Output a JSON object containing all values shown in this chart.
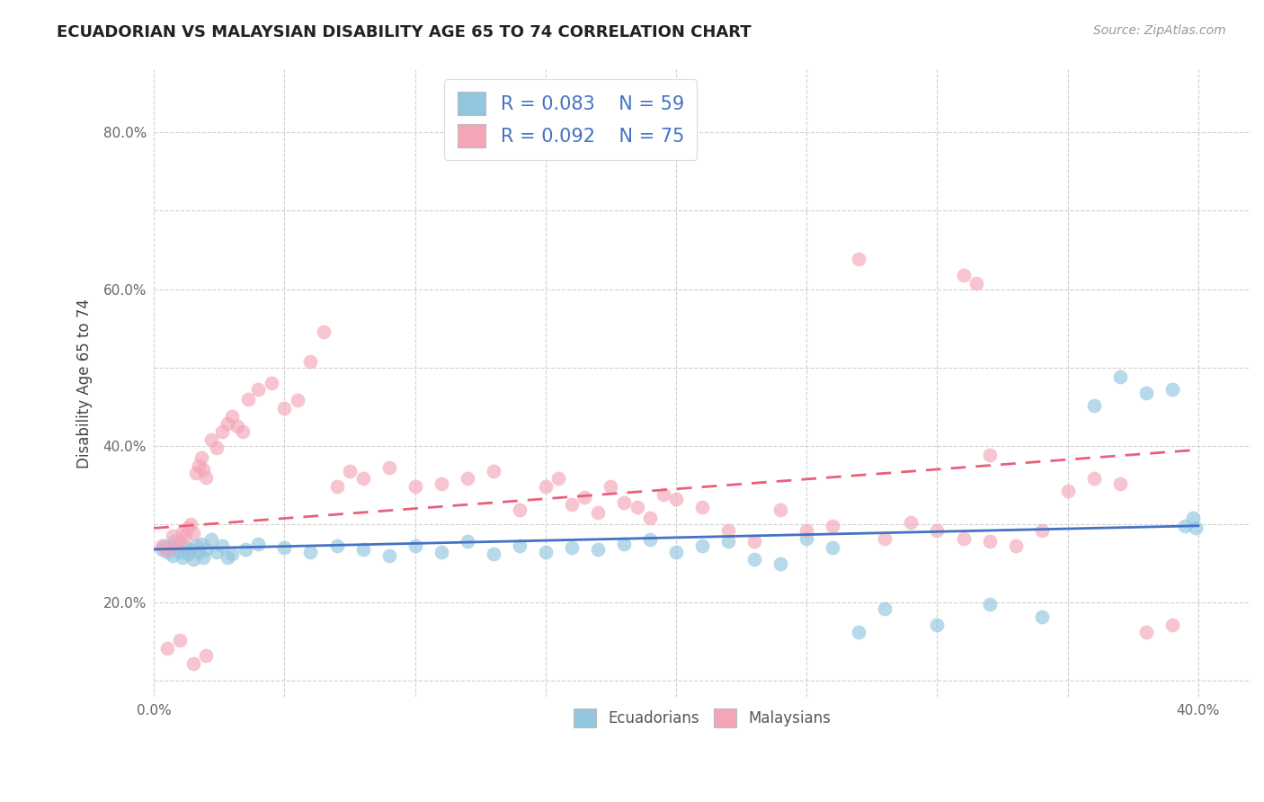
{
  "title": "ECUADORIAN VS MALAYSIAN DISABILITY AGE 65 TO 74 CORRELATION CHART",
  "source_text": "Source: ZipAtlas.com",
  "ylabel": "Disability Age 65 to 74",
  "xlim": [
    0.0,
    0.42
  ],
  "ylim": [
    0.08,
    0.88
  ],
  "xticks": [
    0.0,
    0.05,
    0.1,
    0.15,
    0.2,
    0.25,
    0.3,
    0.35,
    0.4
  ],
  "yticks": [
    0.1,
    0.2,
    0.3,
    0.4,
    0.5,
    0.6,
    0.7,
    0.8
  ],
  "ecuadorian_color": "#92C5DE",
  "malaysian_color": "#F4A6B8",
  "ecuadorian_line_color": "#4472C4",
  "malaysian_line_color": "#E8607A",
  "R_ecuadorian": 0.083,
  "N_ecuadorian": 59,
  "R_malaysian": 0.092,
  "N_malaysian": 75,
  "legend_labels": [
    "Ecuadorians",
    "Malaysians"
  ],
  "background_color": "#ffffff",
  "grid_color": "#cccccc",
  "ecuadorian_x": [
    0.003,
    0.004,
    0.005,
    0.006,
    0.007,
    0.008,
    0.009,
    0.01,
    0.011,
    0.012,
    0.013,
    0.014,
    0.015,
    0.016,
    0.017,
    0.018,
    0.019,
    0.02,
    0.022,
    0.024,
    0.026,
    0.028,
    0.03,
    0.035,
    0.04,
    0.05,
    0.06,
    0.07,
    0.08,
    0.09,
    0.1,
    0.11,
    0.12,
    0.13,
    0.14,
    0.15,
    0.16,
    0.17,
    0.18,
    0.19,
    0.2,
    0.21,
    0.22,
    0.23,
    0.24,
    0.25,
    0.26,
    0.27,
    0.28,
    0.3,
    0.32,
    0.34,
    0.36,
    0.37,
    0.38,
    0.39,
    0.395,
    0.398,
    0.399
  ],
  "ecuadorian_y": [
    0.268,
    0.272,
    0.265,
    0.27,
    0.26,
    0.278,
    0.272,
    0.265,
    0.258,
    0.27,
    0.262,
    0.268,
    0.255,
    0.272,
    0.265,
    0.275,
    0.258,
    0.268,
    0.28,
    0.265,
    0.272,
    0.258,
    0.262,
    0.268,
    0.275,
    0.27,
    0.265,
    0.272,
    0.268,
    0.26,
    0.272,
    0.265,
    0.278,
    0.262,
    0.272,
    0.265,
    0.27,
    0.268,
    0.275,
    0.28,
    0.265,
    0.272,
    0.278,
    0.255,
    0.25,
    0.282,
    0.27,
    0.162,
    0.192,
    0.172,
    0.198,
    0.182,
    0.452,
    0.488,
    0.468,
    0.472,
    0.298,
    0.308,
    0.295
  ],
  "malaysian_x": [
    0.003,
    0.005,
    0.007,
    0.009,
    0.01,
    0.011,
    0.012,
    0.013,
    0.014,
    0.015,
    0.016,
    0.017,
    0.018,
    0.019,
    0.02,
    0.022,
    0.024,
    0.026,
    0.028,
    0.03,
    0.032,
    0.034,
    0.036,
    0.04,
    0.045,
    0.05,
    0.055,
    0.06,
    0.065,
    0.07,
    0.075,
    0.08,
    0.09,
    0.1,
    0.11,
    0.12,
    0.13,
    0.14,
    0.15,
    0.155,
    0.16,
    0.165,
    0.17,
    0.175,
    0.18,
    0.185,
    0.19,
    0.195,
    0.2,
    0.21,
    0.22,
    0.23,
    0.24,
    0.25,
    0.26,
    0.27,
    0.28,
    0.29,
    0.3,
    0.31,
    0.32,
    0.33,
    0.34,
    0.35,
    0.36,
    0.37,
    0.38,
    0.39,
    0.31,
    0.315,
    0.32,
    0.005,
    0.01,
    0.015,
    0.02
  ],
  "malaysian_y": [
    0.272,
    0.268,
    0.285,
    0.275,
    0.278,
    0.29,
    0.285,
    0.295,
    0.3,
    0.288,
    0.365,
    0.375,
    0.385,
    0.37,
    0.36,
    0.408,
    0.398,
    0.418,
    0.428,
    0.438,
    0.425,
    0.418,
    0.46,
    0.472,
    0.48,
    0.448,
    0.458,
    0.508,
    0.545,
    0.348,
    0.368,
    0.358,
    0.372,
    0.348,
    0.352,
    0.358,
    0.368,
    0.318,
    0.348,
    0.358,
    0.325,
    0.335,
    0.315,
    0.348,
    0.328,
    0.322,
    0.308,
    0.338,
    0.332,
    0.322,
    0.292,
    0.278,
    0.318,
    0.292,
    0.298,
    0.638,
    0.282,
    0.302,
    0.292,
    0.282,
    0.278,
    0.272,
    0.292,
    0.342,
    0.358,
    0.352,
    0.162,
    0.172,
    0.618,
    0.608,
    0.388,
    0.142,
    0.152,
    0.122,
    0.132
  ]
}
